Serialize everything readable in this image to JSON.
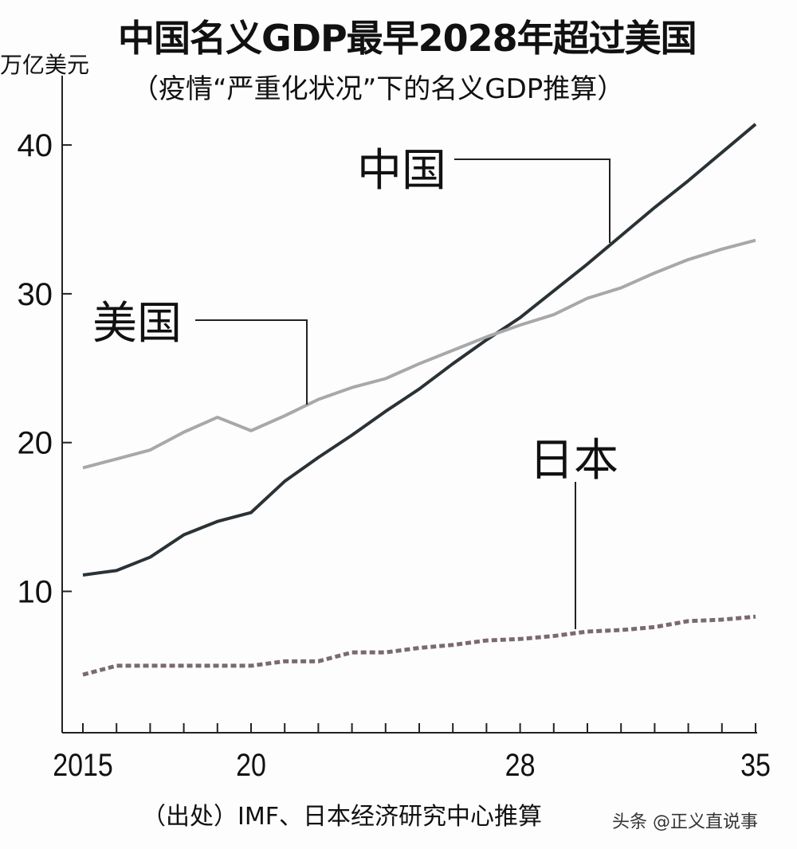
{
  "chart_data": {
    "type": "line",
    "title": "中国名义GDP最早2028年超过美国",
    "subtitle": "（疫情“严重化状况”下的名义GDP推算）",
    "ylabel": "万亿美元",
    "xlabel": "",
    "x": [
      2015,
      2016,
      2017,
      2018,
      2019,
      2020,
      2021,
      2022,
      2023,
      2024,
      2025,
      2026,
      2027,
      2028,
      2029,
      2030,
      2031,
      2032,
      2033,
      2034,
      2035
    ],
    "xticklabels": [
      {
        "x": 2015,
        "label": "2015"
      },
      {
        "x": 2020,
        "label": "20"
      },
      {
        "x": 2028,
        "label": "28"
      },
      {
        "x": 2035,
        "label": "35"
      }
    ],
    "yticks": [
      10,
      20,
      30,
      40
    ],
    "ylim": [
      0.5,
      44.5
    ],
    "xlim": [
      2015,
      2035
    ],
    "grid": false,
    "series": [
      {
        "name": "中国",
        "color": "#2a3236",
        "style": "solid",
        "values": [
          11.1,
          11.4,
          12.3,
          13.8,
          14.7,
          15.3,
          17.4,
          19.0,
          20.5,
          22.1,
          23.6,
          25.3,
          26.9,
          28.4,
          30.2,
          32.0,
          33.9,
          35.8,
          37.6,
          39.5,
          41.4
        ]
      },
      {
        "name": "美国",
        "color": "#a8a8a8",
        "style": "solid",
        "values": [
          18.3,
          18.9,
          19.5,
          20.7,
          21.7,
          20.8,
          21.8,
          22.9,
          23.7,
          24.3,
          25.3,
          26.2,
          27.1,
          27.9,
          28.6,
          29.7,
          30.4,
          31.4,
          32.3,
          33.0,
          33.6
        ]
      },
      {
        "name": "日本",
        "color": "#7a6a70",
        "style": "dashed",
        "values": [
          4.4,
          5.0,
          5.0,
          5.0,
          5.0,
          5.0,
          5.3,
          5.3,
          5.9,
          5.9,
          6.2,
          6.4,
          6.7,
          6.8,
          7.0,
          7.3,
          7.4,
          7.6,
          8.0,
          8.1,
          8.3
        ]
      }
    ]
  },
  "source": "（出处）IMF、日本经济研究中心推算",
  "watermark": "头条 @正义直说事"
}
